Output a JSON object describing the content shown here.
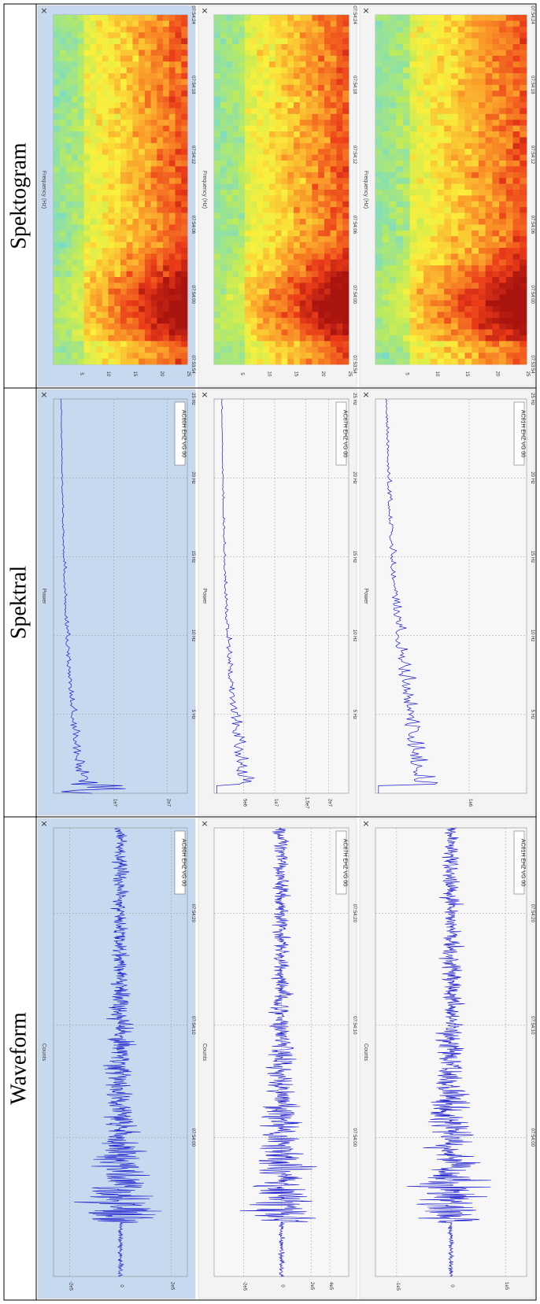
{
  "sections": [
    {
      "title": "Spektogram",
      "panels": [
        {
          "label": "AC60H EHZ VG 00",
          "y_title": "Frequency (Hz)",
          "y_ticks": [
            "25",
            "20",
            "15",
            "10",
            "5"
          ],
          "x_ticks": [
            "07:53:54",
            "07:54:00",
            "07:54:06",
            "07:54:12",
            "07:54:18",
            "07:54:24"
          ],
          "highlighted": true
        },
        {
          "label": "AC67H EHZ VG 00",
          "y_title": "Frequency (Hz)",
          "y_ticks": [
            "25",
            "20",
            "15",
            "10",
            "5"
          ],
          "x_ticks": [
            "07:53:54",
            "07:54:00",
            "07:54:06",
            "07:54:12",
            "07:54:18",
            "07:54:24"
          ],
          "highlighted": false
        },
        {
          "label": "AC61H EHZ VG 00",
          "y_title": "Frequency (Hz)",
          "y_ticks": [
            "25",
            "20",
            "15",
            "10",
            "5"
          ],
          "x_ticks": [
            "07:53:54",
            "07:54:00",
            "07:54:06",
            "07:54:12",
            "07:54:18",
            "07:54:24"
          ],
          "highlighted": false
        }
      ]
    },
    {
      "title": "Spektral",
      "panels": [
        {
          "label": "AC60H EHZ VG 00",
          "y_title": "Power",
          "y_ticks": [
            "2e7",
            "1e7"
          ],
          "x_ticks": [
            "5 Hz",
            "10 Hz",
            "15 Hz",
            "20 Hz",
            "25 Hz"
          ],
          "highlighted": true
        },
        {
          "label": "AC67H EHZ VG 00",
          "y_title": "Power",
          "y_ticks": [
            "2e7",
            "1.5e7",
            "1e7",
            "5e6"
          ],
          "x_ticks": [
            "5 Hz",
            "10 Hz",
            "15 Hz",
            "20 Hz",
            "25 Hz"
          ],
          "highlighted": false
        },
        {
          "label": "AC61H EHZ VG 00",
          "y_title": "Power",
          "y_ticks": [
            "1e6"
          ],
          "x_ticks": [
            "5 Hz",
            "10 Hz",
            "15 Hz",
            "20 Hz",
            "25 Hz"
          ],
          "highlighted": false
        }
      ]
    },
    {
      "title": "Waveform",
      "panels": [
        {
          "label": "AC60H EHZ VG 00",
          "y_title": "Counts",
          "y_ticks": [
            "2e5",
            "0",
            "-2e5"
          ],
          "x_ticks": [
            "07:54:00",
            "07:54:10",
            "07:54:20"
          ],
          "highlighted": true
        },
        {
          "label": "AC67H EHZ VG 00",
          "y_title": "Counts",
          "y_ticks": [
            "4e5",
            "2e5",
            "0",
            "-2e5"
          ],
          "x_ticks": [
            "07:54:00",
            "07:54:10",
            "07:54:20"
          ],
          "highlighted": false
        },
        {
          "label": "AC61H EHZ VG 00",
          "y_title": "Counts",
          "y_ticks": [
            "1e5",
            "0",
            "-1e5"
          ],
          "x_ticks": [
            "07:54:00",
            "07:54:10",
            "07:54:20"
          ],
          "highlighted": false
        }
      ]
    }
  ],
  "close_glyph": "×",
  "colors": {
    "trace": "#1a1acc",
    "highlight_bg": "#c6d9ee",
    "panel_bg": "#f3f3f3",
    "border": "#000000",
    "grid": "#9a9a9a"
  }
}
